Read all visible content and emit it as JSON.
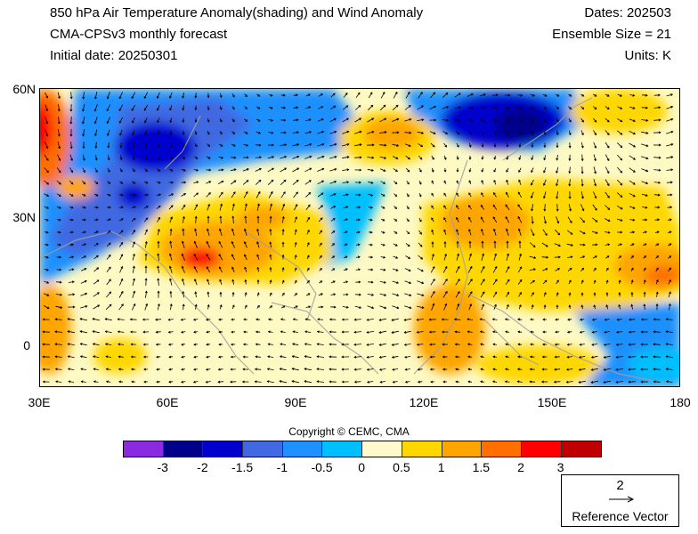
{
  "header": {
    "title": "850 hPa Air Temperature Anomaly(shading) and Wind Anomaly",
    "model": "CMA-CPSv3 monthly forecast",
    "init_date": "Initial date: 20250301",
    "dates": "Dates: 202503",
    "ensemble": "Ensemble Size = 21",
    "units": "Units: K"
  },
  "map": {
    "extent": {
      "lon": [
        30,
        180
      ],
      "lat": [
        -10,
        60
      ]
    },
    "lat_labels": [
      "60N",
      "30N",
      "0"
    ],
    "lon_labels": [
      "30E",
      "60E",
      "90E",
      "120E",
      "150E",
      "180"
    ],
    "shading_variable": "850 hPa air temperature anomaly (K)",
    "vector_variable": "850 hPa wind anomaly"
  },
  "copyright": "Copyright © CEMC, CMA",
  "colorbar": {
    "labels": [
      "-3",
      "-2",
      "-1.5",
      "-1",
      "-0.5",
      "0",
      "0.5",
      "1",
      "1.5",
      "2",
      "3"
    ],
    "colors": [
      "#8a2be2",
      "#00008b",
      "#0000cd",
      "#4169e1",
      "#1e90ff",
      "#00bfff",
      "#fffacd",
      "#ffd700",
      "#ffa500",
      "#ff7000",
      "#ff0000",
      "#c00000"
    ]
  },
  "reference_vector": {
    "magnitude": "2",
    "label": "Reference Vector"
  },
  "colors": {
    "cold_strong": "#00008b",
    "cold": "#0000cd",
    "cool": "#1e90ff",
    "cool_light": "#00bfff",
    "neutral": "#fff9c4",
    "warm_light": "#ffd700",
    "warm": "#ffa500",
    "hot": "#ff0000"
  }
}
